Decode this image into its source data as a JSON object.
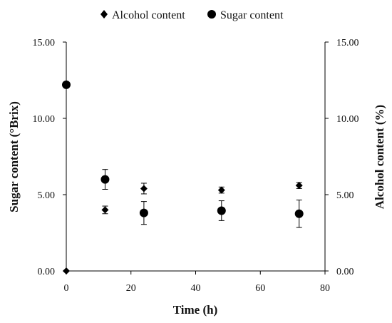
{
  "chart_data": {
    "type": "scatter",
    "title": "",
    "xlabel": "Time (h)",
    "ylabel_left": "Sugar content (°Brix)",
    "ylabel_right": "Alcohol content (%)",
    "xlim": [
      0,
      80
    ],
    "ylim_left": [
      0,
      15
    ],
    "ylim_right": [
      0,
      15
    ],
    "x_ticks": [
      "0",
      "20",
      "40",
      "60",
      "80"
    ],
    "y_ticks_left": [
      "0.00",
      "5.00",
      "10.00",
      "15.00"
    ],
    "y_ticks_right": [
      "0.00",
      "5.00",
      "10.00",
      "15.00"
    ],
    "grid": false,
    "legend_position": "top",
    "series": [
      {
        "name": "Alcohol content",
        "marker": "diamond",
        "axis": "right",
        "points": [
          {
            "x": 0,
            "y": 0.0,
            "err": 0.0
          },
          {
            "x": 12,
            "y": 4.0,
            "err": 0.25
          },
          {
            "x": 24,
            "y": 5.4,
            "err": 0.35
          },
          {
            "x": 48,
            "y": 5.3,
            "err": 0.2
          },
          {
            "x": 72,
            "y": 5.6,
            "err": 0.2
          }
        ]
      },
      {
        "name": "Sugar content",
        "marker": "circle",
        "axis": "left",
        "points": [
          {
            "x": 0,
            "y": 12.2,
            "err": 0.0
          },
          {
            "x": 12,
            "y": 6.0,
            "err": 0.65
          },
          {
            "x": 24,
            "y": 3.8,
            "err": 0.75
          },
          {
            "x": 48,
            "y": 3.95,
            "err": 0.65
          },
          {
            "x": 72,
            "y": 3.75,
            "err": 0.9
          }
        ]
      }
    ],
    "colors": {
      "marker": "#000000",
      "axis": "#000000"
    }
  }
}
